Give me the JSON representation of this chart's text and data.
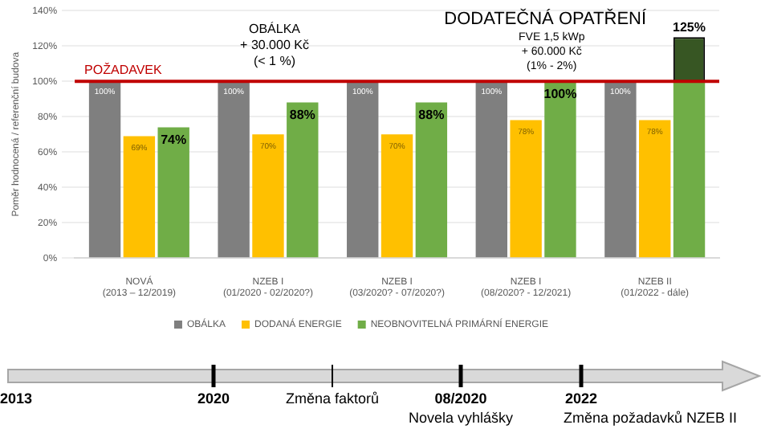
{
  "chart_data": {
    "type": "bar",
    "ylabel": "Poměr hodnocená / referenční budova",
    "categories": [
      "NOVÁ (2013 – 12/2019)",
      "NZEB I (01/2020 - 02/2020?)",
      "NZEB I (03/2020? - 07/2020?)",
      "NZEB I (08/2020? - 12/2021)",
      "NZEB II (01/2022 - dále)"
    ],
    "series": [
      {
        "name": "OBÁLKA",
        "color": "#7f7f7f",
        "values": [
          100,
          100,
          100,
          100,
          100
        ],
        "value_labels": [
          "100%",
          "100%",
          "100%",
          "100%",
          "100%"
        ]
      },
      {
        "name": "DODANÁ ENERGIE",
        "color": "#ffc000",
        "values": [
          69,
          70,
          70,
          78,
          78
        ],
        "value_labels": [
          "69%",
          "70%",
          "70%",
          "78%",
          "78%"
        ]
      },
      {
        "name": "NEOBNOVITELNÁ PRIMÁRNÍ ENERGIE",
        "color": "#70ad47",
        "values": [
          74,
          88,
          88,
          100,
          100
        ],
        "value_labels": [
          "74%",
          "88%",
          "88%",
          "100%",
          null
        ]
      },
      {
        "color": "#375623",
        "values": [
          null,
          null,
          null,
          null,
          25
        ],
        "base": [
          null,
          null,
          null,
          null,
          100
        ],
        "value_labels": [
          null,
          null,
          null,
          null,
          "125%"
        ]
      }
    ],
    "ylim": [
      0,
      140
    ],
    "yticks": [
      {
        "value": 0,
        "label": "0%"
      },
      {
        "value": 20,
        "label": "20%"
      },
      {
        "value": 40,
        "label": "40%"
      },
      {
        "value": 60,
        "label": "60%"
      },
      {
        "value": 80,
        "label": "80%"
      },
      {
        "value": 100,
        "label": "100%"
      },
      {
        "value": 120,
        "label": "120%"
      },
      {
        "value": 140,
        "label": "140%"
      }
    ],
    "grid": "y",
    "legend": "bottom",
    "ref_lines": [
      {
        "axis": "y",
        "value": 100,
        "label": "POŽADAVEK",
        "color": "#c00000"
      }
    ],
    "annotations": [
      "OBÁLKA\n+ 30.000 Kč\n(< 1 %)",
      "DODATEČNÁ OPATŘENÍ",
      "FVE 1,5 kWp\n+ 60.000 Kč\n(1% - 2%)",
      "2013",
      "2020",
      "Změna faktorů",
      "08/2020",
      "Novela vyhlášky",
      "2022",
      "Změna požadavků NZEB II"
    ]
  }
}
